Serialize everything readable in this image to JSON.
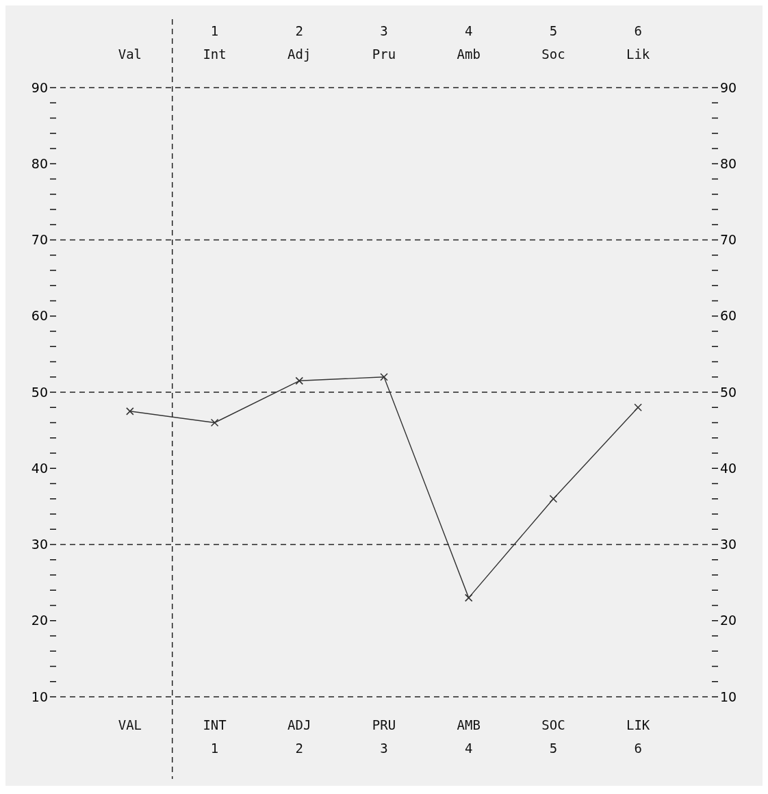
{
  "chart_data": {
    "type": "line",
    "categories": [
      "VAL",
      "INT\n1",
      "ADJ\n2",
      "PRU\n3",
      "AMB\n4",
      "SOC\n5",
      "LIK\n6"
    ],
    "annotations": [
      "Val",
      "1\nInt",
      "2\nAdj",
      "3\nPru",
      "4\nAmb",
      "5\nSoc",
      "6\nLik"
    ],
    "ylim": [
      10,
      90
    ],
    "yticks": [
      10,
      {
        "value": 12,
        "label": null
      },
      {
        "value": 14,
        "label": null
      },
      {
        "value": 16,
        "label": null
      },
      {
        "value": 18,
        "label": null
      },
      20,
      {
        "value": 22,
        "label": null
      },
      {
        "value": 24,
        "label": null
      },
      {
        "value": 26,
        "label": null
      },
      {
        "value": 28,
        "label": null
      },
      30,
      {
        "value": 32,
        "label": null
      },
      {
        "value": 34,
        "label": null
      },
      {
        "value": 36,
        "label": null
      },
      {
        "value": 38,
        "label": null
      },
      40,
      {
        "value": 42,
        "label": null
      },
      {
        "value": 44,
        "label": null
      },
      {
        "value": 46,
        "label": null
      },
      {
        "value": 48,
        "label": null
      },
      50,
      {
        "value": 52,
        "label": null
      },
      {
        "value": 54,
        "label": null
      },
      {
        "value": 56,
        "label": null
      },
      {
        "value": 58,
        "label": null
      },
      60,
      {
        "value": 62,
        "label": null
      },
      {
        "value": 64,
        "label": null
      },
      {
        "value": 66,
        "label": null
      },
      {
        "value": 68,
        "label": null
      },
      70,
      {
        "value": 72,
        "label": null
      },
      {
        "value": 74,
        "label": null
      },
      {
        "value": 76,
        "label": null
      },
      {
        "value": 78,
        "label": null
      },
      80,
      {
        "value": 82,
        "label": null
      },
      {
        "value": 84,
        "label": null
      },
      {
        "value": 86,
        "label": null
      },
      {
        "value": 88,
        "label": null
      },
      90
    ],
    "y2lim": [
      10,
      90
    ],
    "y2ticks": [
      10,
      {
        "value": 12,
        "label": null
      },
      {
        "value": 14,
        "label": null
      },
      {
        "value": 16,
        "label": null
      },
      {
        "value": 18,
        "label": null
      },
      20,
      {
        "value": 22,
        "label": null
      },
      {
        "value": 24,
        "label": null
      },
      {
        "value": 26,
        "label": null
      },
      {
        "value": 28,
        "label": null
      },
      30,
      {
        "value": 32,
        "label": null
      },
      {
        "value": 34,
        "label": null
      },
      {
        "value": 36,
        "label": null
      },
      {
        "value": 38,
        "label": null
      },
      40,
      {
        "value": 42,
        "label": null
      },
      {
        "value": 44,
        "label": null
      },
      {
        "value": 46,
        "label": null
      },
      {
        "value": 48,
        "label": null
      },
      50,
      {
        "value": 52,
        "label": null
      },
      {
        "value": 54,
        "label": null
      },
      {
        "value": 56,
        "label": null
      },
      {
        "value": 58,
        "label": null
      },
      60,
      {
        "value": 62,
        "label": null
      },
      {
        "value": 64,
        "label": null
      },
      {
        "value": 66,
        "label": null
      },
      {
        "value": 68,
        "label": null
      },
      70,
      {
        "value": 72,
        "label": null
      },
      {
        "value": 74,
        "label": null
      },
      {
        "value": 76,
        "label": null
      },
      {
        "value": 78,
        "label": null
      },
      80,
      {
        "value": 82,
        "label": null
      },
      {
        "value": 84,
        "label": null
      },
      {
        "value": 86,
        "label": null
      },
      {
        "value": 88,
        "label": null
      },
      90
    ],
    "series": [
      {
        "color": "#333333",
        "values": [
          47.5,
          46,
          51.5,
          52,
          23,
          36,
          48
        ]
      }
    ],
    "marker": "cross",
    "line_style": "solid",
    "grid": false,
    "ref_lines": [
      {
        "axis": "y",
        "value": 30,
        "line_style": "dashed",
        "color": "#222222"
      },
      {
        "axis": "y",
        "value": 50,
        "line_style": "dashed",
        "color": "#222222"
      },
      {
        "axis": "y",
        "value": 70,
        "line_style": "dashed",
        "color": "#222222"
      }
    ]
  }
}
